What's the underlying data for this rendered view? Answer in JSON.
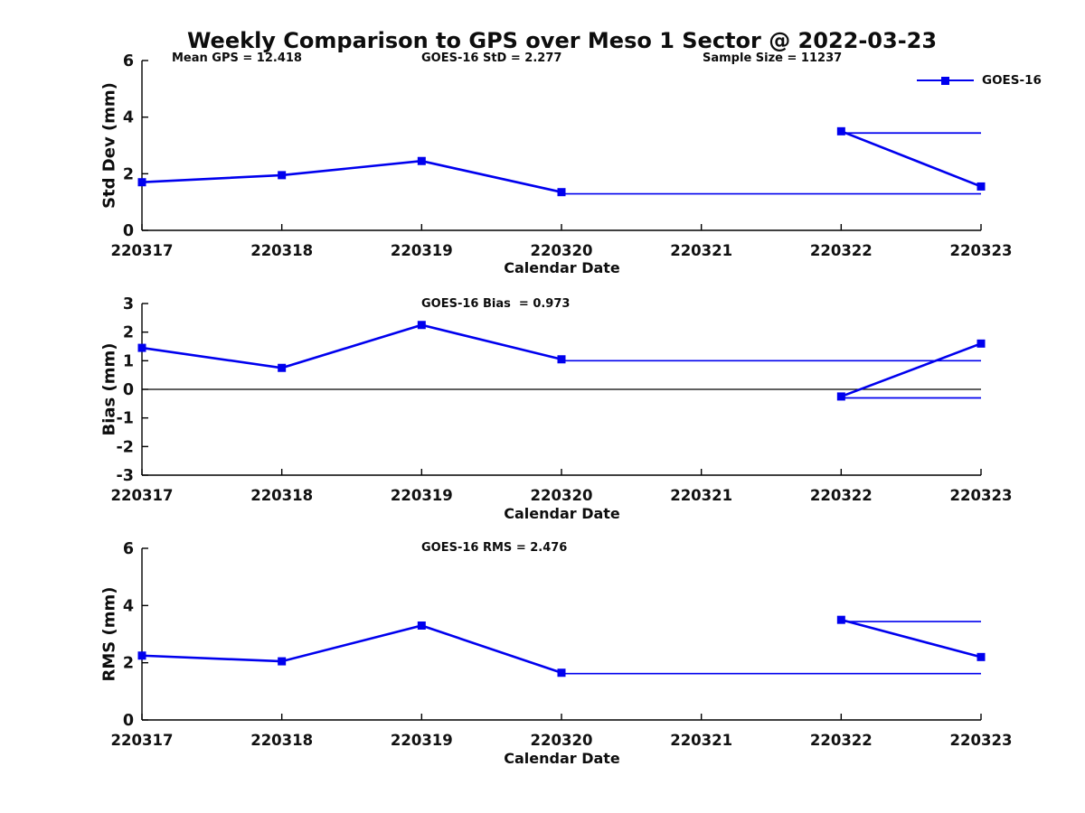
{
  "chart_data": {
    "type": "line",
    "title": "Weekly Comparison to GPS over Meso 1 Sector @ 2022-03-23",
    "line_color": "#0000ee",
    "axis_color": "#000000",
    "text_color": "#111111",
    "legend": {
      "label": "GOES-16",
      "position": "top-right",
      "marker": "square"
    },
    "x_categories": [
      "220317",
      "220318",
      "220319",
      "220320",
      "220321",
      "220322",
      "220323"
    ],
    "plots": [
      {
        "ylabel": "Std Dev (mm)",
        "xlabel": "Calendar Date",
        "ylim": [
          0,
          6
        ],
        "yticks": [
          0,
          2,
          4,
          6
        ],
        "zero_line": false,
        "annotations": [
          {
            "text": "Mean GPS = 12.418"
          },
          {
            "text": "GOES-16 StD = 2.277"
          },
          {
            "text": "Sample Size = 11237"
          }
        ],
        "markers": [
          [
            "220317",
            1.7
          ],
          [
            "220318",
            1.95
          ],
          [
            "220319",
            2.45
          ],
          [
            "220320",
            1.35
          ],
          [
            "220322",
            3.5
          ],
          [
            "220323",
            1.55
          ]
        ],
        "thick_segments": [
          [
            [
              "220317",
              1.7
            ],
            [
              "220318",
              1.95
            ],
            [
              "220319",
              2.45
            ],
            [
              "220320",
              1.35
            ]
          ],
          [
            [
              "220322",
              3.5
            ],
            [
              "220323",
              1.55
            ]
          ]
        ],
        "thin_segments": [
          [
            [
              "220320",
              1.29
            ],
            [
              "220323",
              1.29
            ]
          ],
          [
            [
              "220322",
              3.44
            ],
            [
              "220323",
              3.44
            ]
          ]
        ]
      },
      {
        "ylabel": "Bias (mm)",
        "xlabel": "Calendar Date",
        "ylim": [
          -3,
          3
        ],
        "yticks": [
          -3,
          -2,
          -1,
          0,
          1,
          2,
          3
        ],
        "zero_line": true,
        "annotations": [
          {
            "text": "GOES-16 Bias  = 0.973"
          }
        ],
        "markers": [
          [
            "220317",
            1.45
          ],
          [
            "220318",
            0.75
          ],
          [
            "220319",
            2.25
          ],
          [
            "220320",
            1.05
          ],
          [
            "220322",
            -0.25
          ],
          [
            "220323",
            1.6
          ]
        ],
        "thick_segments": [
          [
            [
              "220317",
              1.45
            ],
            [
              "220318",
              0.75
            ],
            [
              "220319",
              2.25
            ],
            [
              "220320",
              1.05
            ]
          ],
          [
            [
              "220322",
              -0.25
            ],
            [
              "220323",
              1.6
            ]
          ]
        ],
        "thin_segments": [
          [
            [
              "220320",
              1.0
            ],
            [
              "220323",
              1.0
            ]
          ],
          [
            [
              "220322",
              -0.3
            ],
            [
              "220323",
              -0.3
            ]
          ]
        ]
      },
      {
        "ylabel": "RMS (mm)",
        "xlabel": "Calendar Date",
        "ylim": [
          0,
          6
        ],
        "yticks": [
          0,
          2,
          4,
          6
        ],
        "zero_line": false,
        "annotations": [
          {
            "text": "GOES-16 RMS = 2.476"
          }
        ],
        "markers": [
          [
            "220317",
            2.25
          ],
          [
            "220318",
            2.05
          ],
          [
            "220319",
            3.3
          ],
          [
            "220320",
            1.65
          ],
          [
            "220322",
            3.5
          ],
          [
            "220323",
            2.2
          ]
        ],
        "thick_segments": [
          [
            [
              "220317",
              2.25
            ],
            [
              "220318",
              2.05
            ],
            [
              "220319",
              3.3
            ],
            [
              "220320",
              1.65
            ]
          ],
          [
            [
              "220322",
              3.5
            ],
            [
              "220323",
              2.2
            ]
          ]
        ],
        "thin_segments": [
          [
            [
              "220320",
              1.62
            ],
            [
              "220323",
              1.62
            ]
          ],
          [
            [
              "220322",
              3.44
            ],
            [
              "220323",
              3.44
            ]
          ]
        ]
      }
    ]
  }
}
